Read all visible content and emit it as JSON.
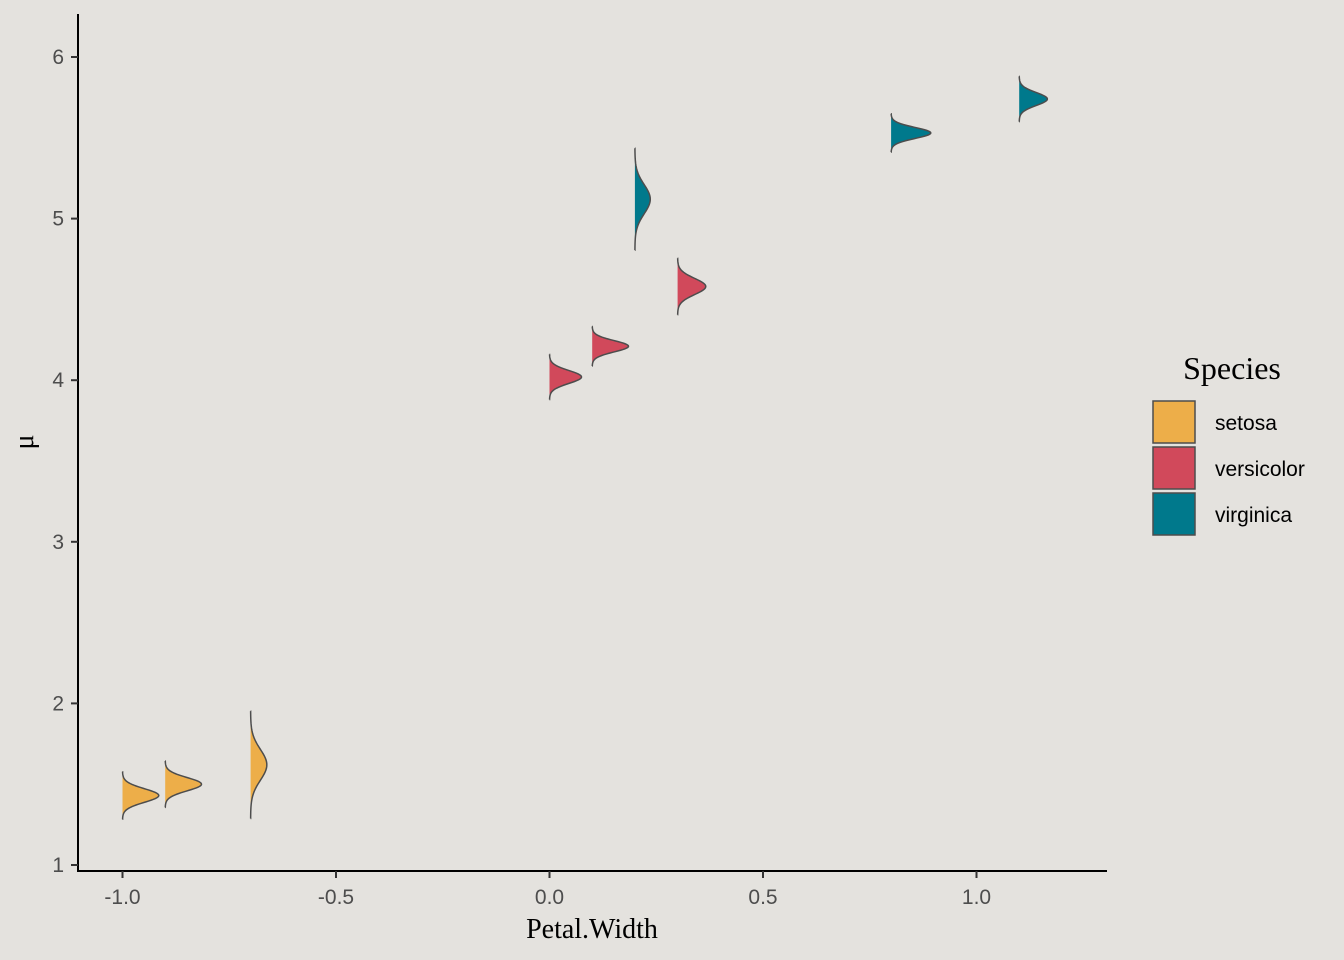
{
  "colors": {
    "background": "#e4e2de",
    "axis": "#000000",
    "ridge_outline": "#4d4d4d",
    "setosa": "#edae49",
    "versicolor": "#d1495b",
    "virginica": "#00798c"
  },
  "chart_data": {
    "type": "ridgeline",
    "xlabel": "Petal.Width",
    "ylabel": "μ",
    "xlim": [
      -1.1,
      1.3
    ],
    "ylim": [
      0.95,
      6.25
    ],
    "x_ticks": [
      -1.0,
      -0.5,
      0.0,
      0.5,
      1.0
    ],
    "x_tick_labels": [
      "-1.0",
      "-0.5",
      "0.0",
      "0.5",
      "1.0"
    ],
    "y_ticks": [
      1,
      2,
      3,
      4,
      5,
      6
    ],
    "y_tick_labels": [
      "1",
      "2",
      "3",
      "4",
      "5",
      "6"
    ],
    "grid": false,
    "legend": {
      "title": "Species",
      "position": "right",
      "entries": [
        {
          "name": "setosa",
          "color": "#edae49"
        },
        {
          "name": "versicolor",
          "color": "#d1495b"
        },
        {
          "name": "virginica",
          "color": "#00798c"
        }
      ]
    },
    "series": [
      {
        "name": "setosa",
        "color": "#edae49",
        "distributions": [
          {
            "x": -1.0,
            "mean": 1.43,
            "sd": 0.042,
            "peak_width": 0.085
          },
          {
            "x": -0.9,
            "mean": 1.5,
            "sd": 0.041,
            "peak_width": 0.085
          },
          {
            "x": -0.7,
            "mean": 1.62,
            "sd": 0.095,
            "peak_width": 0.038
          }
        ]
      },
      {
        "name": "versicolor",
        "color": "#d1495b",
        "distributions": [
          {
            "x": 0.0,
            "mean": 4.02,
            "sd": 0.04,
            "peak_width": 0.075
          },
          {
            "x": 0.1,
            "mean": 4.21,
            "sd": 0.035,
            "peak_width": 0.085
          },
          {
            "x": 0.3,
            "mean": 4.58,
            "sd": 0.05,
            "peak_width": 0.066
          }
        ]
      },
      {
        "name": "virginica",
        "color": "#00798c",
        "distributions": [
          {
            "x": 0.2,
            "mean": 5.12,
            "sd": 0.09,
            "peak_width": 0.036
          },
          {
            "x": 0.8,
            "mean": 5.53,
            "sd": 0.034,
            "peak_width": 0.093
          },
          {
            "x": 1.1,
            "mean": 5.74,
            "sd": 0.04,
            "peak_width": 0.066
          }
        ]
      }
    ]
  }
}
